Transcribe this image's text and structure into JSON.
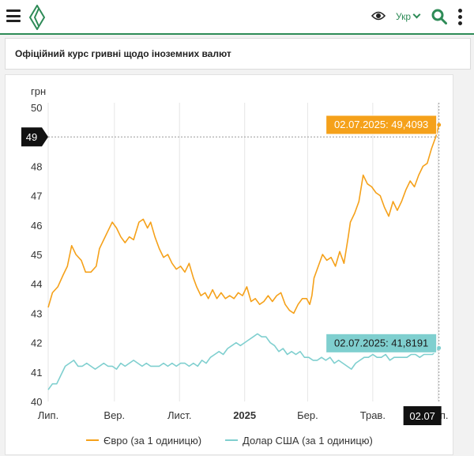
{
  "header": {
    "language": "Укр"
  },
  "page": {
    "title": "Офіційний курс гривні щодо іноземних валют"
  },
  "chart_data": {
    "type": "line",
    "ylabel": "грн",
    "ylim": [
      40,
      50
    ],
    "yticks": [
      40,
      41,
      42,
      43,
      44,
      45,
      46,
      47,
      48,
      49,
      50
    ],
    "xlim": [
      "2024-07-01",
      "2025-07-03"
    ],
    "xticks": [
      {
        "date": "2024-07-01",
        "label": "Лип."
      },
      {
        "date": "2024-09-01",
        "label": "Вер."
      },
      {
        "date": "2024-11-01",
        "label": "Лист."
      },
      {
        "date": "2025-01-01",
        "label": "2025",
        "bold": true
      },
      {
        "date": "2025-03-01",
        "label": "Бер."
      },
      {
        "date": "2025-05-01",
        "label": "Трав."
      },
      {
        "date": "2025-07-01",
        "label": "Лип."
      }
    ],
    "grid": "vertical",
    "legend_position": "bottom",
    "crosshair": {
      "x_label": "02.07",
      "y_label": "49"
    },
    "series": [
      {
        "name": "Євро (за 1 одиницю)",
        "color": "#f5a11a",
        "tooltip": "02.07.2025: 49,4093",
        "points": [
          [
            "2024-07-01",
            43.2
          ],
          [
            "2024-07-05",
            43.7
          ],
          [
            "2024-07-10",
            43.9
          ],
          [
            "2024-07-15",
            44.3
          ],
          [
            "2024-07-19",
            44.6
          ],
          [
            "2024-07-23",
            45.3
          ],
          [
            "2024-07-27",
            45.0
          ],
          [
            "2024-08-01",
            44.8
          ],
          [
            "2024-08-05",
            44.4
          ],
          [
            "2024-08-10",
            44.4
          ],
          [
            "2024-08-15",
            44.6
          ],
          [
            "2024-08-18",
            45.2
          ],
          [
            "2024-08-22",
            45.5
          ],
          [
            "2024-08-26",
            45.8
          ],
          [
            "2024-08-30",
            46.1
          ],
          [
            "2024-09-03",
            45.9
          ],
          [
            "2024-09-07",
            45.6
          ],
          [
            "2024-09-11",
            45.4
          ],
          [
            "2024-09-15",
            45.6
          ],
          [
            "2024-09-19",
            45.5
          ],
          [
            "2024-09-24",
            46.1
          ],
          [
            "2024-09-28",
            46.2
          ],
          [
            "2024-10-02",
            45.9
          ],
          [
            "2024-10-05",
            46.1
          ],
          [
            "2024-10-09",
            45.6
          ],
          [
            "2024-10-13",
            45.2
          ],
          [
            "2024-10-17",
            44.9
          ],
          [
            "2024-10-21",
            45.0
          ],
          [
            "2024-10-25",
            44.7
          ],
          [
            "2024-10-29",
            44.5
          ],
          [
            "2024-11-02",
            44.6
          ],
          [
            "2024-11-06",
            44.4
          ],
          [
            "2024-11-10",
            44.7
          ],
          [
            "2024-11-14",
            44.2
          ],
          [
            "2024-11-17",
            43.9
          ],
          [
            "2024-11-21",
            43.6
          ],
          [
            "2024-11-25",
            43.7
          ],
          [
            "2024-11-28",
            43.5
          ],
          [
            "2024-12-02",
            43.8
          ],
          [
            "2024-12-06",
            43.5
          ],
          [
            "2024-12-10",
            43.7
          ],
          [
            "2024-12-14",
            43.5
          ],
          [
            "2024-12-18",
            43.6
          ],
          [
            "2024-12-22",
            43.5
          ],
          [
            "2024-12-26",
            43.7
          ],
          [
            "2024-12-30",
            43.6
          ],
          [
            "2025-01-03",
            43.9
          ],
          [
            "2025-01-07",
            43.4
          ],
          [
            "2025-01-11",
            43.5
          ],
          [
            "2025-01-15",
            43.3
          ],
          [
            "2025-01-19",
            43.4
          ],
          [
            "2025-01-23",
            43.6
          ],
          [
            "2025-01-27",
            43.4
          ],
          [
            "2025-01-31",
            43.6
          ],
          [
            "2025-02-04",
            43.7
          ],
          [
            "2025-02-08",
            43.3
          ],
          [
            "2025-02-12",
            43.1
          ],
          [
            "2025-02-16",
            43.0
          ],
          [
            "2025-02-20",
            43.3
          ],
          [
            "2025-02-24",
            43.5
          ],
          [
            "2025-02-28",
            43.5
          ],
          [
            "2025-03-03",
            43.3
          ],
          [
            "2025-03-05",
            43.6
          ],
          [
            "2025-03-07",
            44.2
          ],
          [
            "2025-03-11",
            44.6
          ],
          [
            "2025-03-15",
            45.0
          ],
          [
            "2025-03-19",
            44.8
          ],
          [
            "2025-03-23",
            44.9
          ],
          [
            "2025-03-27",
            44.6
          ],
          [
            "2025-03-31",
            45.1
          ],
          [
            "2025-04-04",
            44.7
          ],
          [
            "2025-04-08",
            45.6
          ],
          [
            "2025-04-10",
            46.1
          ],
          [
            "2025-04-14",
            46.4
          ],
          [
            "2025-04-18",
            46.8
          ],
          [
            "2025-04-22",
            47.7
          ],
          [
            "2025-04-26",
            47.4
          ],
          [
            "2025-04-30",
            47.3
          ],
          [
            "2025-05-04",
            47.1
          ],
          [
            "2025-05-08",
            47.0
          ],
          [
            "2025-05-12",
            46.6
          ],
          [
            "2025-05-16",
            46.3
          ],
          [
            "2025-05-20",
            46.8
          ],
          [
            "2025-05-24",
            46.5
          ],
          [
            "2025-05-28",
            46.8
          ],
          [
            "2025-06-01",
            47.2
          ],
          [
            "2025-06-05",
            47.5
          ],
          [
            "2025-06-09",
            47.3
          ],
          [
            "2025-06-13",
            47.7
          ],
          [
            "2025-06-17",
            48.0
          ],
          [
            "2025-06-21",
            48.1
          ],
          [
            "2025-06-25",
            48.6
          ],
          [
            "2025-06-29",
            49.0
          ],
          [
            "2025-07-02",
            49.4093
          ]
        ]
      },
      {
        "name": "Долар США (за 1 одиницю)",
        "color": "#7fcfcf",
        "tooltip": "02.07.2025: 41,8191",
        "points": [
          [
            "2024-07-01",
            40.4
          ],
          [
            "2024-07-05",
            40.6
          ],
          [
            "2024-07-09",
            40.6
          ],
          [
            "2024-07-13",
            40.9
          ],
          [
            "2024-07-17",
            41.2
          ],
          [
            "2024-07-21",
            41.3
          ],
          [
            "2024-07-25",
            41.4
          ],
          [
            "2024-07-29",
            41.2
          ],
          [
            "2024-08-02",
            41.2
          ],
          [
            "2024-08-06",
            41.3
          ],
          [
            "2024-08-10",
            41.2
          ],
          [
            "2024-08-14",
            41.1
          ],
          [
            "2024-08-18",
            41.2
          ],
          [
            "2024-08-22",
            41.3
          ],
          [
            "2024-08-26",
            41.2
          ],
          [
            "2024-08-30",
            41.2
          ],
          [
            "2024-09-03",
            41.1
          ],
          [
            "2024-09-07",
            41.3
          ],
          [
            "2024-09-11",
            41.2
          ],
          [
            "2024-09-15",
            41.3
          ],
          [
            "2024-09-19",
            41.4
          ],
          [
            "2024-09-23",
            41.3
          ],
          [
            "2024-09-27",
            41.2
          ],
          [
            "2024-10-01",
            41.3
          ],
          [
            "2024-10-05",
            41.2
          ],
          [
            "2024-10-09",
            41.2
          ],
          [
            "2024-10-13",
            41.2
          ],
          [
            "2024-10-17",
            41.3
          ],
          [
            "2024-10-21",
            41.2
          ],
          [
            "2024-10-25",
            41.3
          ],
          [
            "2024-10-29",
            41.2
          ],
          [
            "2024-11-02",
            41.3
          ],
          [
            "2024-11-06",
            41.3
          ],
          [
            "2024-11-10",
            41.2
          ],
          [
            "2024-11-14",
            41.3
          ],
          [
            "2024-11-18",
            41.2
          ],
          [
            "2024-11-22",
            41.4
          ],
          [
            "2024-11-26",
            41.3
          ],
          [
            "2024-11-30",
            41.5
          ],
          [
            "2024-12-04",
            41.6
          ],
          [
            "2024-12-08",
            41.7
          ],
          [
            "2024-12-12",
            41.6
          ],
          [
            "2024-12-16",
            41.8
          ],
          [
            "2024-12-20",
            41.9
          ],
          [
            "2024-12-24",
            42.0
          ],
          [
            "2024-12-28",
            41.9
          ],
          [
            "2025-01-01",
            42.0
          ],
          [
            "2025-01-05",
            42.1
          ],
          [
            "2025-01-09",
            42.2
          ],
          [
            "2025-01-13",
            42.3
          ],
          [
            "2025-01-17",
            42.2
          ],
          [
            "2025-01-21",
            42.2
          ],
          [
            "2025-01-25",
            42.0
          ],
          [
            "2025-01-29",
            41.9
          ],
          [
            "2025-02-02",
            41.7
          ],
          [
            "2025-02-06",
            41.8
          ],
          [
            "2025-02-10",
            41.6
          ],
          [
            "2025-02-14",
            41.7
          ],
          [
            "2025-02-18",
            41.6
          ],
          [
            "2025-02-22",
            41.7
          ],
          [
            "2025-02-26",
            41.5
          ],
          [
            "2025-03-02",
            41.5
          ],
          [
            "2025-03-06",
            41.4
          ],
          [
            "2025-03-10",
            41.4
          ],
          [
            "2025-03-14",
            41.5
          ],
          [
            "2025-03-18",
            41.4
          ],
          [
            "2025-03-22",
            41.5
          ],
          [
            "2025-03-26",
            41.3
          ],
          [
            "2025-03-30",
            41.4
          ],
          [
            "2025-04-03",
            41.3
          ],
          [
            "2025-04-07",
            41.2
          ],
          [
            "2025-04-11",
            41.1
          ],
          [
            "2025-04-15",
            41.3
          ],
          [
            "2025-04-19",
            41.4
          ],
          [
            "2025-04-23",
            41.5
          ],
          [
            "2025-04-27",
            41.5
          ],
          [
            "2025-05-01",
            41.6
          ],
          [
            "2025-05-05",
            41.5
          ],
          [
            "2025-05-09",
            41.5
          ],
          [
            "2025-05-13",
            41.6
          ],
          [
            "2025-05-17",
            41.4
          ],
          [
            "2025-05-21",
            41.5
          ],
          [
            "2025-05-25",
            41.5
          ],
          [
            "2025-05-29",
            41.5
          ],
          [
            "2025-06-02",
            41.5
          ],
          [
            "2025-06-06",
            41.6
          ],
          [
            "2025-06-10",
            41.6
          ],
          [
            "2025-06-14",
            41.5
          ],
          [
            "2025-06-18",
            41.6
          ],
          [
            "2025-06-22",
            41.6
          ],
          [
            "2025-06-26",
            41.6
          ],
          [
            "2025-07-02",
            41.8191
          ]
        ]
      }
    ]
  }
}
